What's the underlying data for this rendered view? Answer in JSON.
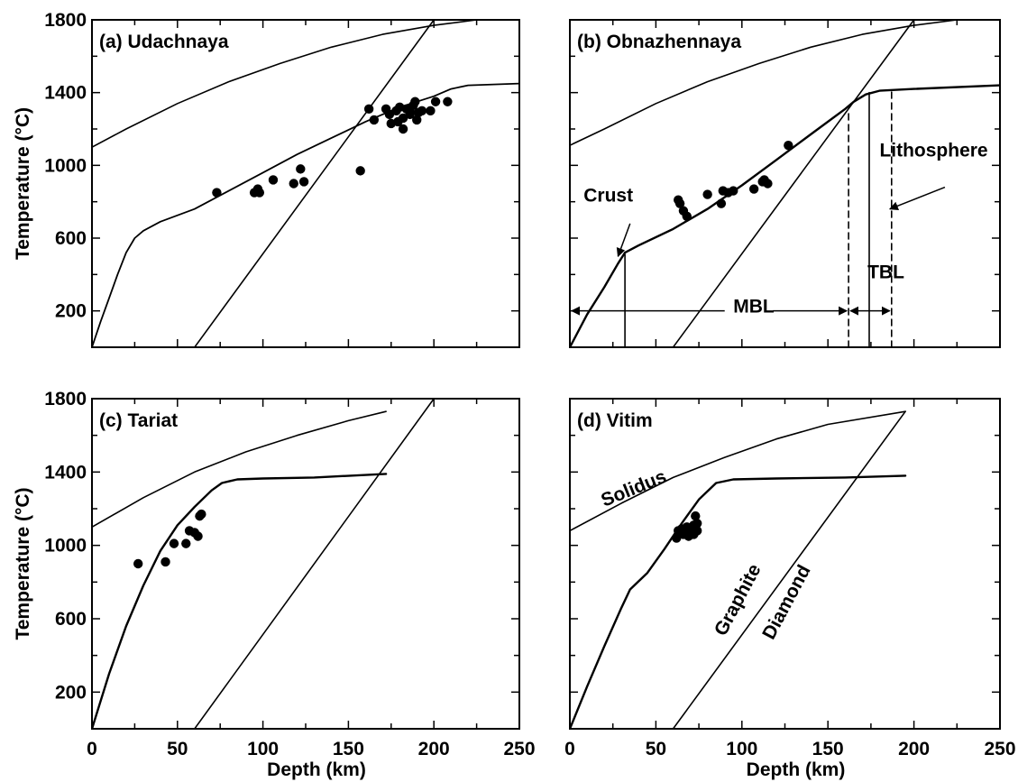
{
  "chart_data": [
    {
      "type": "line",
      "title": "(a)  Udachnaya",
      "xlabel": "",
      "ylabel": "Temperature (°C)",
      "xlim": [
        0,
        250
      ],
      "ylim": [
        0,
        1800
      ],
      "xticks": [],
      "yticks": [
        "200",
        "600",
        "1000",
        "1400",
        "1800"
      ],
      "series": [
        {
          "values": [
            [
              0,
              1100
            ],
            [
              20,
              1200
            ],
            [
              50,
              1340
            ],
            [
              80,
              1460
            ],
            [
              110,
              1560
            ],
            [
              140,
              1650
            ],
            [
              170,
              1720
            ],
            [
              200,
              1770
            ],
            [
              225,
              1800
            ]
          ]
        },
        {
          "values": [
            [
              60,
              0
            ],
            [
              200,
              1800
            ]
          ]
        },
        {
          "values": [
            [
              0,
              0
            ],
            [
              5,
              140
            ],
            [
              10,
              270
            ],
            [
              15,
              400
            ],
            [
              20,
              520
            ],
            [
              25,
              600
            ],
            [
              30,
              640
            ],
            [
              40,
              690
            ],
            [
              60,
              760
            ],
            [
              80,
              860
            ],
            [
              100,
              960
            ],
            [
              120,
              1060
            ],
            [
              140,
              1150
            ],
            [
              160,
              1240
            ],
            [
              180,
              1320
            ],
            [
              200,
              1380
            ],
            [
              210,
              1420
            ],
            [
              220,
              1440
            ],
            [
              250,
              1450
            ]
          ],
          "weight": 1.8
        }
      ],
      "points": [
        [
          73,
          850
        ],
        [
          95,
          850
        ],
        [
          97,
          870
        ],
        [
          98,
          850
        ],
        [
          106,
          920
        ],
        [
          118,
          900
        ],
        [
          122,
          980
        ],
        [
          124,
          910
        ],
        [
          157,
          970
        ],
        [
          162,
          1310
        ],
        [
          165,
          1250
        ],
        [
          172,
          1310
        ],
        [
          174,
          1280
        ],
        [
          175,
          1230
        ],
        [
          178,
          1300
        ],
        [
          179,
          1240
        ],
        [
          180,
          1320
        ],
        [
          182,
          1260
        ],
        [
          182,
          1200
        ],
        [
          184,
          1310
        ],
        [
          186,
          1300
        ],
        [
          186,
          1280
        ],
        [
          188,
          1330
        ],
        [
          189,
          1350
        ],
        [
          190,
          1250
        ],
        [
          191,
          1290
        ],
        [
          193,
          1300
        ],
        [
          198,
          1300
        ],
        [
          201,
          1350
        ],
        [
          208,
          1350
        ]
      ],
      "annotations": []
    },
    {
      "type": "line",
      "title": "(b)  Obnazhennaya",
      "xlabel": "",
      "ylabel": "",
      "xlim": [
        0,
        250
      ],
      "ylim": [
        0,
        1800
      ],
      "xticks": [],
      "yticks": [],
      "series": [
        {
          "values": [
            [
              0,
              1110
            ],
            [
              20,
              1200
            ],
            [
              50,
              1340
            ],
            [
              80,
              1460
            ],
            [
              110,
              1560
            ],
            [
              140,
              1650
            ],
            [
              170,
              1720
            ],
            [
              200,
              1770
            ],
            [
              225,
              1800
            ]
          ]
        },
        {
          "values": [
            [
              60,
              0
            ],
            [
              200,
              1800
            ]
          ]
        },
        {
          "values": [
            [
              0,
              0
            ],
            [
              10,
              180
            ],
            [
              20,
              330
            ],
            [
              28,
              460
            ],
            [
              32,
              520
            ],
            [
              40,
              560
            ],
            [
              60,
              650
            ],
            [
              80,
              760
            ],
            [
              100,
              890
            ],
            [
              120,
              1030
            ],
            [
              140,
              1170
            ],
            [
              160,
              1310
            ],
            [
              165,
              1350
            ],
            [
              172,
              1390
            ],
            [
              180,
              1410
            ],
            [
              200,
              1420
            ],
            [
              250,
              1440
            ]
          ],
          "weight": 2.4
        },
        {
          "values": [
            [
              32,
              0
            ],
            [
              32,
              510
            ]
          ]
        },
        {
          "values": [
            [
              174,
              0
            ],
            [
              174,
              1400
            ]
          ]
        },
        {
          "values": [
            [
              162,
              0
            ],
            [
              162,
              1300
            ]
          ],
          "dash": true
        },
        {
          "values": [
            [
              187,
              0
            ],
            [
              187,
              1410
            ]
          ],
          "dash": true
        }
      ],
      "points": [
        [
          63,
          810
        ],
        [
          64,
          790
        ],
        [
          66,
          750
        ],
        [
          68,
          720
        ],
        [
          80,
          840
        ],
        [
          88,
          790
        ],
        [
          89,
          860
        ],
        [
          92,
          850
        ],
        [
          95,
          860
        ],
        [
          107,
          870
        ],
        [
          112,
          910
        ],
        [
          113,
          920
        ],
        [
          115,
          900
        ],
        [
          127,
          1110
        ]
      ],
      "annotations": [
        {
          "text": "Crust",
          "at": [
            8,
            800
          ],
          "arrow_from": [
            35,
            680
          ],
          "arrow_to": [
            28,
            500
          ]
        },
        {
          "text": "Lithosphere",
          "at": [
            180,
            1050
          ],
          "arrow_from": [
            218,
            880
          ],
          "arrow_to": [
            186,
            760
          ]
        },
        {
          "text": "TBL",
          "at": [
            173,
            380
          ]
        },
        {
          "text": "MBL",
          "at": [
            95,
            190
          ]
        }
      ]
    },
    {
      "type": "line",
      "title": "(c)  Tariat",
      "xlabel": "Depth (km)",
      "ylabel": "Temperature (°C)",
      "xlim": [
        0,
        250
      ],
      "ylim": [
        0,
        1800
      ],
      "xticks": [
        "0",
        "50",
        "100",
        "150",
        "200",
        "250"
      ],
      "yticks": [
        "200",
        "600",
        "1000",
        "1400",
        "1800"
      ],
      "series": [
        {
          "values": [
            [
              0,
              1100
            ],
            [
              30,
              1260
            ],
            [
              60,
              1400
            ],
            [
              90,
              1510
            ],
            [
              120,
              1600
            ],
            [
              150,
              1680
            ],
            [
              172,
              1730
            ]
          ]
        },
        {
          "values": [
            [
              60,
              0
            ],
            [
              200,
              1800
            ]
          ]
        },
        {
          "values": [
            [
              0,
              0
            ],
            [
              10,
              300
            ],
            [
              20,
              560
            ],
            [
              30,
              780
            ],
            [
              40,
              970
            ],
            [
              50,
              1110
            ],
            [
              60,
              1210
            ],
            [
              70,
              1300
            ],
            [
              76,
              1340
            ],
            [
              85,
              1360
            ],
            [
              100,
              1365
            ],
            [
              130,
              1370
            ],
            [
              172,
              1390
            ]
          ],
          "weight": 2.4
        }
      ],
      "points": [
        [
          27,
          900
        ],
        [
          43,
          910
        ],
        [
          48,
          1010
        ],
        [
          55,
          1010
        ],
        [
          57,
          1080
        ],
        [
          60,
          1070
        ],
        [
          62,
          1050
        ],
        [
          63,
          1160
        ],
        [
          64,
          1170
        ]
      ],
      "annotations": []
    },
    {
      "type": "line",
      "title": "(d)  Vitim",
      "xlabel": "Depth (km)",
      "ylabel": "",
      "xlim": [
        0,
        250
      ],
      "ylim": [
        0,
        1800
      ],
      "xticks": [
        "0",
        "50",
        "100",
        "150",
        "200",
        "250"
      ],
      "yticks": [],
      "series": [
        {
          "values": [
            [
              0,
              1080
            ],
            [
              30,
              1230
            ],
            [
              60,
              1370
            ],
            [
              90,
              1480
            ],
            [
              120,
              1580
            ],
            [
              150,
              1660
            ],
            [
              195,
              1730
            ]
          ]
        },
        {
          "values": [
            [
              60,
              0
            ],
            [
              195,
              1730
            ]
          ]
        },
        {
          "values": [
            [
              0,
              0
            ],
            [
              10,
              230
            ],
            [
              20,
              450
            ],
            [
              30,
              660
            ],
            [
              35,
              760
            ],
            [
              45,
              850
            ],
            [
              55,
              980
            ],
            [
              65,
              1120
            ],
            [
              75,
              1250
            ],
            [
              85,
              1340
            ],
            [
              95,
              1360
            ],
            [
              120,
              1365
            ],
            [
              160,
              1370
            ],
            [
              195,
              1380
            ]
          ],
          "weight": 2.4
        }
      ],
      "points": [
        [
          62,
          1040
        ],
        [
          63,
          1080
        ],
        [
          65,
          1090
        ],
        [
          66,
          1060
        ],
        [
          67,
          1070
        ],
        [
          68,
          1100
        ],
        [
          69,
          1050
        ],
        [
          70,
          1080
        ],
        [
          71,
          1090
        ],
        [
          72,
          1060
        ],
        [
          72,
          1110
        ],
        [
          73,
          1160
        ],
        [
          74,
          1120
        ],
        [
          74,
          1080
        ]
      ],
      "annotations": [
        {
          "text": "Solidus",
          "at": [
            20,
            1210
          ],
          "rotate": -22
        },
        {
          "text": "Graphite",
          "at": [
            90,
            500
          ],
          "rotate": -62
        },
        {
          "text": "Diamond",
          "at": [
            118,
            480
          ],
          "rotate": -62
        }
      ]
    }
  ]
}
